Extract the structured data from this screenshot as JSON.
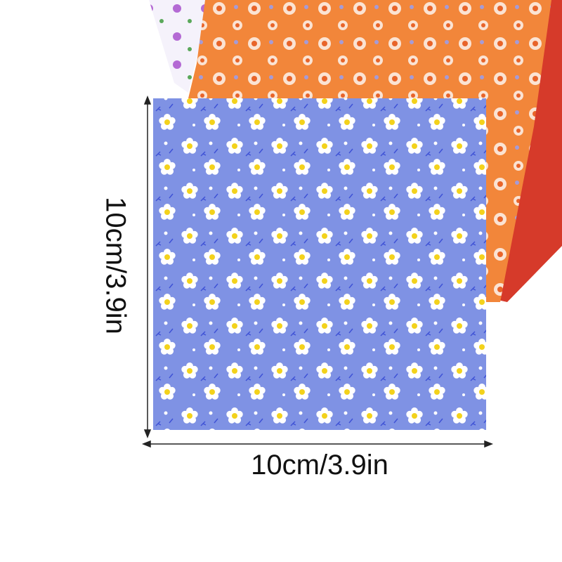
{
  "dimensions": {
    "width_label": "10cm/3.9in",
    "height_label": "10cm/3.9in"
  }
}
